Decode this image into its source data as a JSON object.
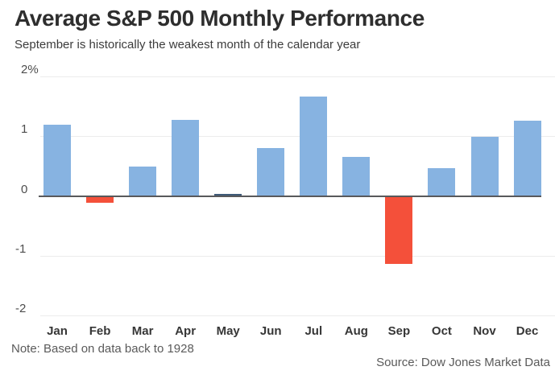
{
  "header": {
    "title": "Average S&P 500 Monthly Performance",
    "subtitle": "September is historically the weakest month of the calendar year"
  },
  "footer": {
    "note": "Note: Based on data back to 1928",
    "source": "Source: Dow Jones Market Data"
  },
  "chart_data": {
    "type": "bar",
    "title": "Average S&P 500 Monthly Performance",
    "subtitle": "September is historically the weakest month of the calendar year",
    "categories": [
      "Jan",
      "Feb",
      "Mar",
      "Apr",
      "May",
      "Jun",
      "Jul",
      "Aug",
      "Sep",
      "Oct",
      "Nov",
      "Dec"
    ],
    "values": [
      1.19,
      -0.12,
      0.49,
      1.27,
      0.02,
      0.8,
      1.66,
      0.65,
      -1.14,
      0.47,
      0.99,
      1.26
    ],
    "unit": "%",
    "ylabel": "",
    "xlabel": "",
    "ylim": [
      -2,
      2
    ],
    "grid": true,
    "legend": "none",
    "yticks": [
      {
        "value": 2,
        "label": "2%"
      },
      {
        "value": 1,
        "label": "1"
      },
      {
        "value": 0,
        "label": "0"
      },
      {
        "value": -1,
        "label": "-1"
      },
      {
        "value": -2,
        "label": "-2"
      }
    ],
    "colors": {
      "positive": "#87b3e1",
      "negative": "#f4503a",
      "near_zero": "#3f5a78",
      "zero_axis": "#58595b",
      "gridline": "#ececec"
    },
    "note": "Note: Based on data back to 1928",
    "source": "Source: Dow Jones Market Data"
  }
}
